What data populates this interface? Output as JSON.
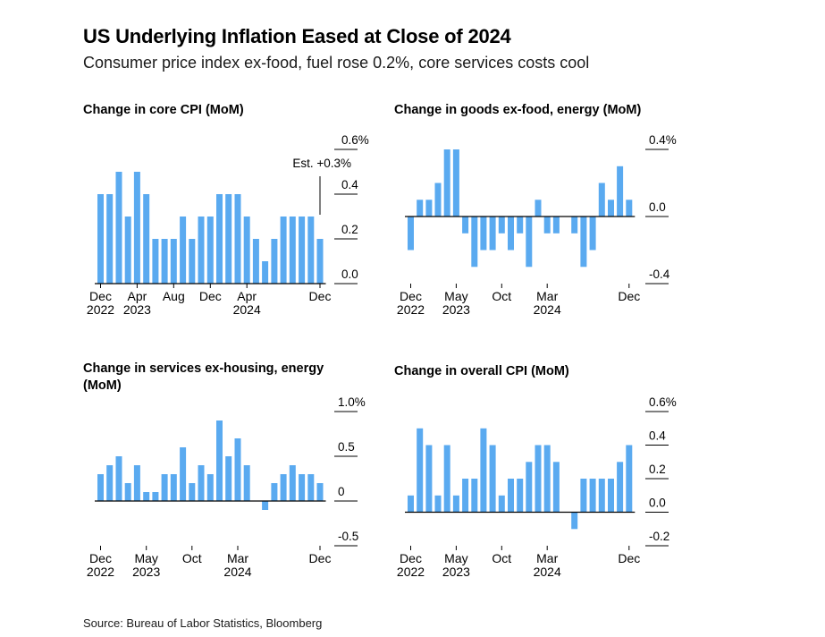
{
  "header": {
    "title": "US Underlying Inflation Eased at Close of 2024",
    "subtitle": "Consumer price index ex-food, fuel rose 0.2%, core services costs cool"
  },
  "footer": {
    "source": "Source: Bureau of Labor Statistics, Bloomberg"
  },
  "colors": {
    "bar": "#5aaaf0",
    "axis": "#000000",
    "text": "#000000"
  },
  "chart_data": [
    {
      "type": "bar",
      "title": "Change in core CPI (MoM)",
      "unit": "%",
      "x": [
        "2022-12",
        "2023-01",
        "2023-02",
        "2023-03",
        "2023-04",
        "2023-05",
        "2023-06",
        "2023-07",
        "2023-08",
        "2023-09",
        "2023-10",
        "2023-11",
        "2023-12",
        "2024-01",
        "2024-02",
        "2024-03",
        "2024-04",
        "2024-05",
        "2024-06",
        "2024-07",
        "2024-08",
        "2024-09",
        "2024-10",
        "2024-11",
        "2024-12"
      ],
      "values": [
        0.4,
        0.4,
        0.5,
        0.3,
        0.5,
        0.4,
        0.2,
        0.2,
        0.2,
        0.3,
        0.2,
        0.3,
        0.3,
        0.4,
        0.4,
        0.4,
        0.3,
        0.2,
        0.1,
        0.2,
        0.3,
        0.3,
        0.3,
        0.3,
        0.2
      ],
      "ylim": [
        0,
        0.6
      ],
      "yticks": [
        {
          "value": 0.6,
          "label": "0.6%"
        },
        {
          "value": 0.4,
          "label": "0.4"
        },
        {
          "value": 0.2,
          "label": "0.2"
        },
        {
          "value": 0.0,
          "label": "0.0"
        }
      ],
      "xticks": [
        {
          "index": 0,
          "line1": "Dec",
          "line2": "2022"
        },
        {
          "index": 4,
          "line1": "Apr",
          "line2": "2023"
        },
        {
          "index": 8,
          "line1": "Aug",
          "line2": ""
        },
        {
          "index": 12,
          "line1": "Dec",
          "line2": ""
        },
        {
          "index": 16,
          "line1": "Apr",
          "line2": "2024"
        },
        {
          "index": 24,
          "line1": "Dec",
          "line2": ""
        }
      ],
      "annotation": {
        "text": "Est. +0.3%",
        "value": 0.3
      }
    },
    {
      "type": "bar",
      "title": "Change in goods ex-food, energy (MoM)",
      "unit": "%",
      "x": [
        "2022-12",
        "2023-01",
        "2023-02",
        "2023-03",
        "2023-04",
        "2023-05",
        "2023-06",
        "2023-07",
        "2023-08",
        "2023-09",
        "2023-10",
        "2023-11",
        "2023-12",
        "2024-01",
        "2024-02",
        "2024-03",
        "2024-04",
        "2024-05",
        "2024-06",
        "2024-07",
        "2024-08",
        "2024-09",
        "2024-10",
        "2024-11",
        "2024-12"
      ],
      "values": [
        -0.2,
        0.1,
        0.1,
        0.2,
        0.4,
        0.4,
        -0.1,
        -0.3,
        -0.2,
        -0.2,
        -0.1,
        -0.2,
        -0.1,
        -0.3,
        0.1,
        -0.1,
        -0.1,
        0.0,
        -0.1,
        -0.3,
        -0.2,
        0.2,
        0.1,
        0.3,
        0.1
      ],
      "ylim": [
        -0.4,
        0.4
      ],
      "yticks": [
        {
          "value": 0.4,
          "label": "0.4%"
        },
        {
          "value": 0.0,
          "label": "0.0"
        },
        {
          "value": -0.4,
          "label": "-0.4"
        }
      ],
      "xticks": [
        {
          "index": 0,
          "line1": "Dec",
          "line2": "2022"
        },
        {
          "index": 5,
          "line1": "May",
          "line2": "2023"
        },
        {
          "index": 10,
          "line1": "Oct",
          "line2": ""
        },
        {
          "index": 15,
          "line1": "Mar",
          "line2": "2024"
        },
        {
          "index": 24,
          "line1": "Dec",
          "line2": ""
        }
      ]
    },
    {
      "type": "bar",
      "title": "Change in services ex-housing, energy (MoM)",
      "unit": "%",
      "x": [
        "2022-12",
        "2023-01",
        "2023-02",
        "2023-03",
        "2023-04",
        "2023-05",
        "2023-06",
        "2023-07",
        "2023-08",
        "2023-09",
        "2023-10",
        "2023-11",
        "2023-12",
        "2024-01",
        "2024-02",
        "2024-03",
        "2024-04",
        "2024-05",
        "2024-06",
        "2024-07",
        "2024-08",
        "2024-09",
        "2024-10",
        "2024-11",
        "2024-12"
      ],
      "values": [
        0.3,
        0.4,
        0.5,
        0.2,
        0.4,
        0.1,
        0.1,
        0.3,
        0.3,
        0.6,
        0.2,
        0.4,
        0.3,
        0.9,
        0.5,
        0.7,
        0.4,
        0.0,
        -0.1,
        0.2,
        0.3,
        0.4,
        0.3,
        0.3,
        0.2
      ],
      "ylim": [
        -0.5,
        1.0
      ],
      "yticks": [
        {
          "value": 1.0,
          "label": "1.0%"
        },
        {
          "value": 0.5,
          "label": "0.5"
        },
        {
          "value": 0.0,
          "label": "0"
        },
        {
          "value": -0.5,
          "label": "-0.5"
        }
      ],
      "xticks": [
        {
          "index": 0,
          "line1": "Dec",
          "line2": "2022"
        },
        {
          "index": 5,
          "line1": "May",
          "line2": "2023"
        },
        {
          "index": 10,
          "line1": "Oct",
          "line2": ""
        },
        {
          "index": 15,
          "line1": "Mar",
          "line2": "2024"
        },
        {
          "index": 24,
          "line1": "Dec",
          "line2": ""
        }
      ]
    },
    {
      "type": "bar",
      "title": "Change in overall CPI (MoM)",
      "unit": "%",
      "x": [
        "2022-12",
        "2023-01",
        "2023-02",
        "2023-03",
        "2023-04",
        "2023-05",
        "2023-06",
        "2023-07",
        "2023-08",
        "2023-09",
        "2023-10",
        "2023-11",
        "2023-12",
        "2024-01",
        "2024-02",
        "2024-03",
        "2024-04",
        "2024-05",
        "2024-06",
        "2024-07",
        "2024-08",
        "2024-09",
        "2024-10",
        "2024-11",
        "2024-12"
      ],
      "values": [
        0.1,
        0.5,
        0.4,
        0.1,
        0.4,
        0.1,
        0.2,
        0.2,
        0.5,
        0.4,
        0.1,
        0.2,
        0.2,
        0.3,
        0.4,
        0.4,
        0.3,
        0.0,
        -0.1,
        0.2,
        0.2,
        0.2,
        0.2,
        0.3,
        0.4
      ],
      "ylim": [
        -0.2,
        0.6
      ],
      "yticks": [
        {
          "value": 0.6,
          "label": "0.6%"
        },
        {
          "value": 0.4,
          "label": "0.4"
        },
        {
          "value": 0.2,
          "label": "0.2"
        },
        {
          "value": 0.0,
          "label": "0.0"
        },
        {
          "value": -0.2,
          "label": "-0.2"
        }
      ],
      "xticks": [
        {
          "index": 0,
          "line1": "Dec",
          "line2": "2022"
        },
        {
          "index": 5,
          "line1": "May",
          "line2": "2023"
        },
        {
          "index": 10,
          "line1": "Oct",
          "line2": ""
        },
        {
          "index": 15,
          "line1": "Mar",
          "line2": "2024"
        },
        {
          "index": 24,
          "line1": "Dec",
          "line2": ""
        }
      ]
    }
  ]
}
